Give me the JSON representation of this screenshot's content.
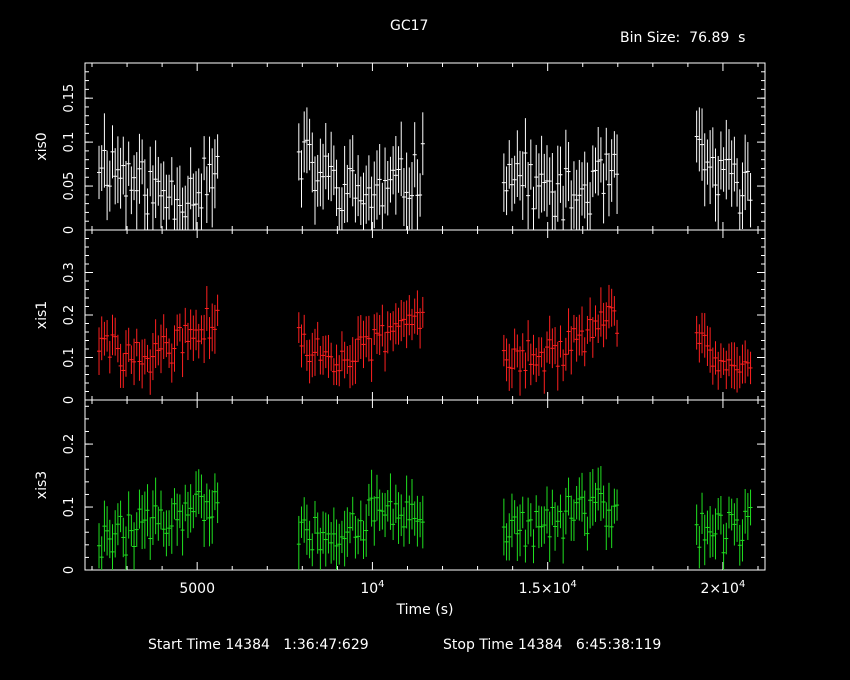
{
  "title": "GC17",
  "bin_size_label": "Bin Size:  76.89  s",
  "footer": {
    "start_label": "Start Time 14384   1:36:47:629",
    "stop_label": "Stop Time 14384   6:45:38:119"
  },
  "chart_data": {
    "type": "scatter",
    "xlabel": "Time (s)",
    "xlim": [
      1800,
      21200
    ],
    "x_ticks": [
      {
        "value": 5000,
        "label": "5000"
      },
      {
        "value": 10000,
        "label": "10",
        "sup": "4"
      },
      {
        "value": 15000,
        "label": "1.5×10",
        "sup": "4"
      },
      {
        "value": 20000,
        "label": "2×10",
        "sup": "4"
      }
    ],
    "segments": [
      [
        2200,
        5650
      ],
      [
        7900,
        11450
      ],
      [
        13750,
        17050
      ],
      [
        19250,
        20800
      ]
    ],
    "panels": [
      {
        "ylabel": "xis0",
        "color": "#ffffff",
        "ylim": [
          0,
          0.19
        ],
        "y_ticks": [
          {
            "value": 0,
            "label": "0"
          },
          {
            "value": 0.05,
            "label": "0.05"
          },
          {
            "value": 0.1,
            "label": "0.1"
          },
          {
            "value": 0.15,
            "label": "0.15"
          }
        ],
        "mean": 0.065,
        "amp": 0.025,
        "noise": 0.03,
        "err": 0.035,
        "seed": 11
      },
      {
        "ylabel": "xis1",
        "color": "#ff2020",
        "ylim": [
          0,
          0.4
        ],
        "y_ticks": [
          {
            "value": 0,
            "label": "0"
          },
          {
            "value": 0.1,
            "label": "0.1"
          },
          {
            "value": 0.2,
            "label": "0.2"
          },
          {
            "value": 0.3,
            "label": "0.3"
          }
        ],
        "mean": 0.15,
        "amp": 0.05,
        "noise": 0.04,
        "err": 0.045,
        "seed": 29
      },
      {
        "ylabel": "xis3",
        "color": "#20e020",
        "ylim": [
          0,
          0.27
        ],
        "y_ticks": [
          {
            "value": 0,
            "label": "0"
          },
          {
            "value": 0.1,
            "label": "0.1"
          },
          {
            "value": 0.2,
            "label": "0.2"
          }
        ],
        "mean": 0.075,
        "amp": 0.02,
        "noise": 0.035,
        "err": 0.035,
        "seed": 47
      }
    ]
  }
}
